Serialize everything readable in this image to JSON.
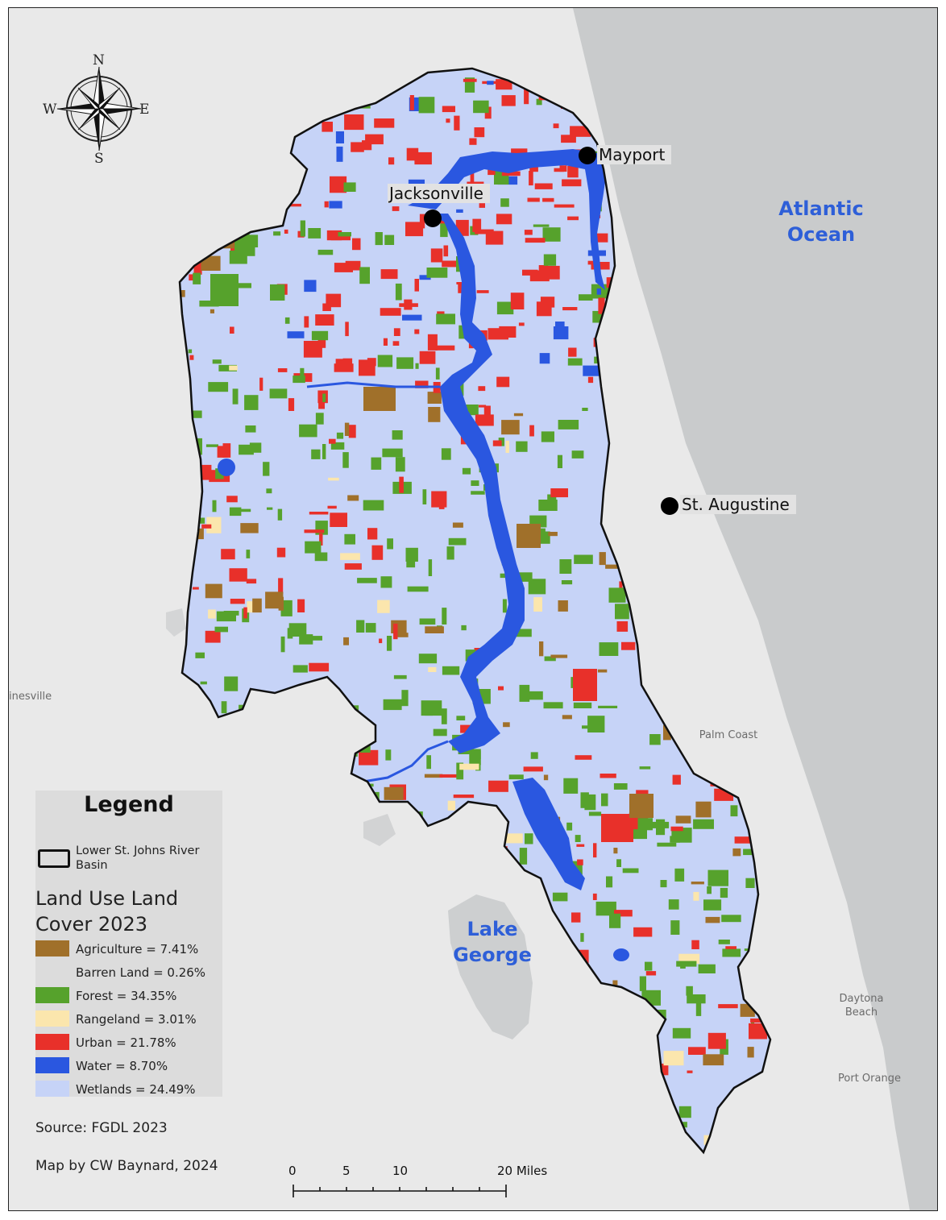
{
  "legend": {
    "title": "Legend",
    "boundary_label": "Lower St. Johns River Basin",
    "lulc_title": "Land Use Land Cover 2023",
    "classes": [
      {
        "label": "Agriculture = 7.41%",
        "color": "#a0702a"
      },
      {
        "label": "Barren Land = 0.26%",
        "color": "#dcdcdc"
      },
      {
        "label": "Forest = 34.35%",
        "color": "#56a22c"
      },
      {
        "label": "Rangeland = 3.01%",
        "color": "#fbe6ad"
      },
      {
        "label": "Urban = 21.78%",
        "color": "#e8302a"
      },
      {
        "label": "Water = 8.70%",
        "color": "#2a57e0"
      },
      {
        "label": "Wetlands = 24.49%",
        "color": "#c6d3f7"
      }
    ]
  },
  "cities": [
    {
      "name": "Jacksonville"
    },
    {
      "name": "Mayport"
    },
    {
      "name": "St. Augustine"
    }
  ],
  "water_bodies": {
    "ocean": "Atlantic\nOcean",
    "lake": "Lake\nGeorge"
  },
  "towns": {
    "gainesville": "inesville",
    "palm_coast": "Palm Coast",
    "daytona": "Daytona\nBeach",
    "port_orange": "Port Orange"
  },
  "source": "Source: FGDL 2023",
  "credit": "Map by CW Baynard, 2024",
  "scale": {
    "ticks": [
      "0",
      "5",
      "10",
      "20 Miles"
    ]
  },
  "compass": {
    "n": "N",
    "s": "S",
    "e": "E",
    "w": "W"
  }
}
